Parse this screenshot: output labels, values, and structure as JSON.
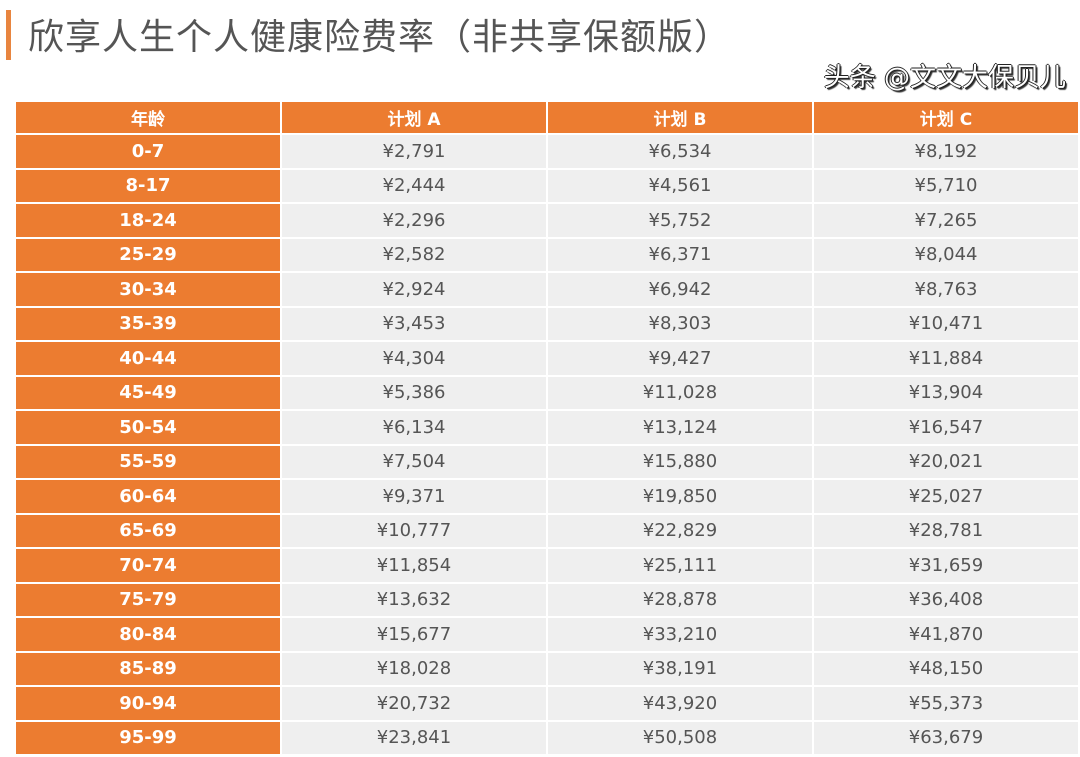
{
  "title": "欣享人生个人健康险费率（非共享保额版）",
  "accent_color": "#ec7c30",
  "table": {
    "headers": [
      "年龄",
      "计划 A",
      "计划 B",
      "计划 C"
    ],
    "rows": [
      [
        "0-7",
        "¥2,791",
        "¥6,534",
        "¥8,192"
      ],
      [
        "8-17",
        "¥2,444",
        "¥4,561",
        "¥5,710"
      ],
      [
        "18-24",
        "¥2,296",
        "¥5,752",
        "¥7,265"
      ],
      [
        "25-29",
        "¥2,582",
        "¥6,371",
        "¥8,044"
      ],
      [
        "30-34",
        "¥2,924",
        "¥6,942",
        "¥8,763"
      ],
      [
        "35-39",
        "¥3,453",
        "¥8,303",
        "¥10,471"
      ],
      [
        "40-44",
        "¥4,304",
        "¥9,427",
        "¥11,884"
      ],
      [
        "45-49",
        "¥5,386",
        "¥11,028",
        "¥13,904"
      ],
      [
        "50-54",
        "¥6,134",
        "¥13,124",
        "¥16,547"
      ],
      [
        "55-59",
        "¥7,504",
        "¥15,880",
        "¥20,021"
      ],
      [
        "60-64",
        "¥9,371",
        "¥19,850",
        "¥25,027"
      ],
      [
        "65-69",
        "¥10,777",
        "¥22,829",
        "¥28,781"
      ],
      [
        "70-74",
        "¥11,854",
        "¥25,111",
        "¥31,659"
      ],
      [
        "75-79",
        "¥13,632",
        "¥28,878",
        "¥36,408"
      ],
      [
        "80-84",
        "¥15,677",
        "¥33,210",
        "¥41,870"
      ],
      [
        "85-89",
        "¥18,028",
        "¥38,191",
        "¥48,150"
      ],
      [
        "90-94",
        "¥20,732",
        "¥43,920",
        "¥55,373"
      ],
      [
        "95-99",
        "¥23,841",
        "¥50,508",
        "¥63,679"
      ]
    ]
  },
  "watermark": "头条 @文文大保贝儿"
}
